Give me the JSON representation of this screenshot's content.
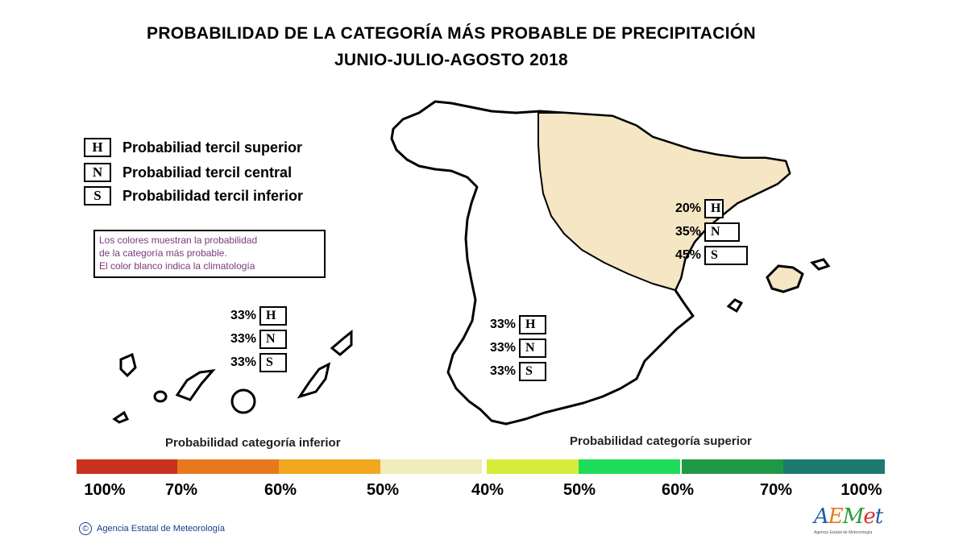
{
  "title": "PROBABILIDAD DE LA CATEGORÍA MÁS PROBABLE DE PRECIPITACIÓN",
  "subtitle": "JUNIO-JULIO-AGOSTO 2018",
  "legend": [
    {
      "letter": "H",
      "label": "Probabiliad tercil superior"
    },
    {
      "letter": "N",
      "label": "Probabiliad tercil central"
    },
    {
      "letter": "S",
      "label": "Probabilidad tercil inferior"
    }
  ],
  "note": [
    "Los colores muestran la probabilidad",
    "de la categoría más probable.",
    "El color blanco indica la climatología"
  ],
  "regions": {
    "canarias": {
      "H": "33%",
      "N": "33%",
      "S": "33%"
    },
    "peninsula": {
      "H": "33%",
      "N": "33%",
      "S": "33%"
    },
    "northeast": {
      "H": "20%",
      "N": "35%",
      "S": "45%"
    }
  },
  "colors": {
    "northeast_fill": "#f5e6c4"
  },
  "scale": {
    "lower_label": "Probabilidad categoría inferior",
    "upper_label": "Probabilidad categoría superior",
    "lower_colors": [
      "#c8321e",
      "#e8781e",
      "#f2a81e",
      "#f0ecbc"
    ],
    "upper_colors": [
      "#d6ec3a",
      "#1edc5a",
      "#1e9a46",
      "#1e7a6e"
    ],
    "ticks": [
      "100%",
      "70%",
      "60%",
      "50%",
      "40%",
      "50%",
      "60%",
      "70%",
      "100%"
    ]
  },
  "footer": {
    "copyright": "©",
    "agency": "Agencia Estatal de Meteorología"
  },
  "logo": {
    "text": "AEMet",
    "subtitle": "Agencia Estatal de Meteorología"
  }
}
